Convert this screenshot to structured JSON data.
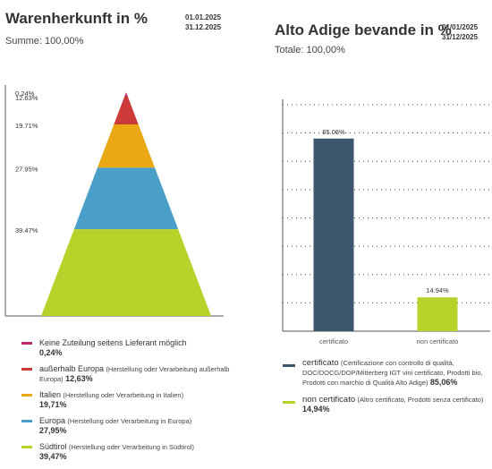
{
  "left": {
    "title": "Warenherkunft in %",
    "date_from": "01.01.2025",
    "date_to": "31.12.2025",
    "total": "Summe: 100,00%",
    "legend": [
      {
        "name": "Keine Zuteilung seitens Lieferant möglich",
        "desc": "",
        "value": "0,24%",
        "color": "#c0286e"
      },
      {
        "name": "außerhalb Europa",
        "desc": "(Herstellung oder Verarbeitung außerhalb Europa)",
        "value": "12,63%",
        "color": "#cc3a3a"
      },
      {
        "name": "Italien",
        "desc": "(Herstellung oder Verarbeitung in Italien)",
        "value": "19,71%",
        "color": "#e8a915"
      },
      {
        "name": "Europa",
        "desc": "(Herstellung oder Verarbeitung in Europa)",
        "value": "27,95%",
        "color": "#4a9fc8"
      },
      {
        "name": "Südtirol",
        "desc": "(Herstellung oder Verarbeitung in Südtirol)",
        "value": "39,47%",
        "color": "#b7d22a"
      }
    ]
  },
  "right": {
    "title": "Alto Adige bevande in %",
    "date_from": "01/01/2025",
    "date_to": "31/12/2025",
    "total": "Totale: 100,00%",
    "legend": [
      {
        "name": "certificato",
        "desc": "(Certificazione con controllo di qualità, DOC/DOCG/DOP/Mitterberg IGT vini certificato, Prodotti bio, Prodotti con marchio di Qualità Alto Adige)",
        "value": "85,06%",
        "color": "#3b566d"
      },
      {
        "name": "non certificato",
        "desc": "(Altro certificato, Prodotti senza certificato)",
        "value": "14,94%",
        "color": "#b7d22a"
      }
    ]
  },
  "chart_data": [
    {
      "type": "pyramid",
      "title": "Warenherkunft in %",
      "categories": [
        "Keine Zuteilung seitens Lieferant möglich",
        "außerhalb Europa",
        "Italien",
        "Europa",
        "Südtirol"
      ],
      "values": [
        0.24,
        12.63,
        19.71,
        27.95,
        39.47
      ],
      "labels": [
        "0.24%",
        "12.63%",
        "19.71%",
        "27.95%",
        "39.47%"
      ],
      "colors": [
        "#c0286e",
        "#cc3a3a",
        "#e8a915",
        "#4a9fc8",
        "#b7d22a"
      ]
    },
    {
      "type": "bar",
      "title": "Alto Adige bevande in %",
      "categories": [
        "certificato",
        "non certificato"
      ],
      "values": [
        85.06,
        14.94
      ],
      "labels": [
        "85.06%",
        "14.94%"
      ],
      "colors": [
        "#3b566d",
        "#b7d22a"
      ],
      "ylim": [
        0,
        100
      ],
      "grid": true
    }
  ]
}
